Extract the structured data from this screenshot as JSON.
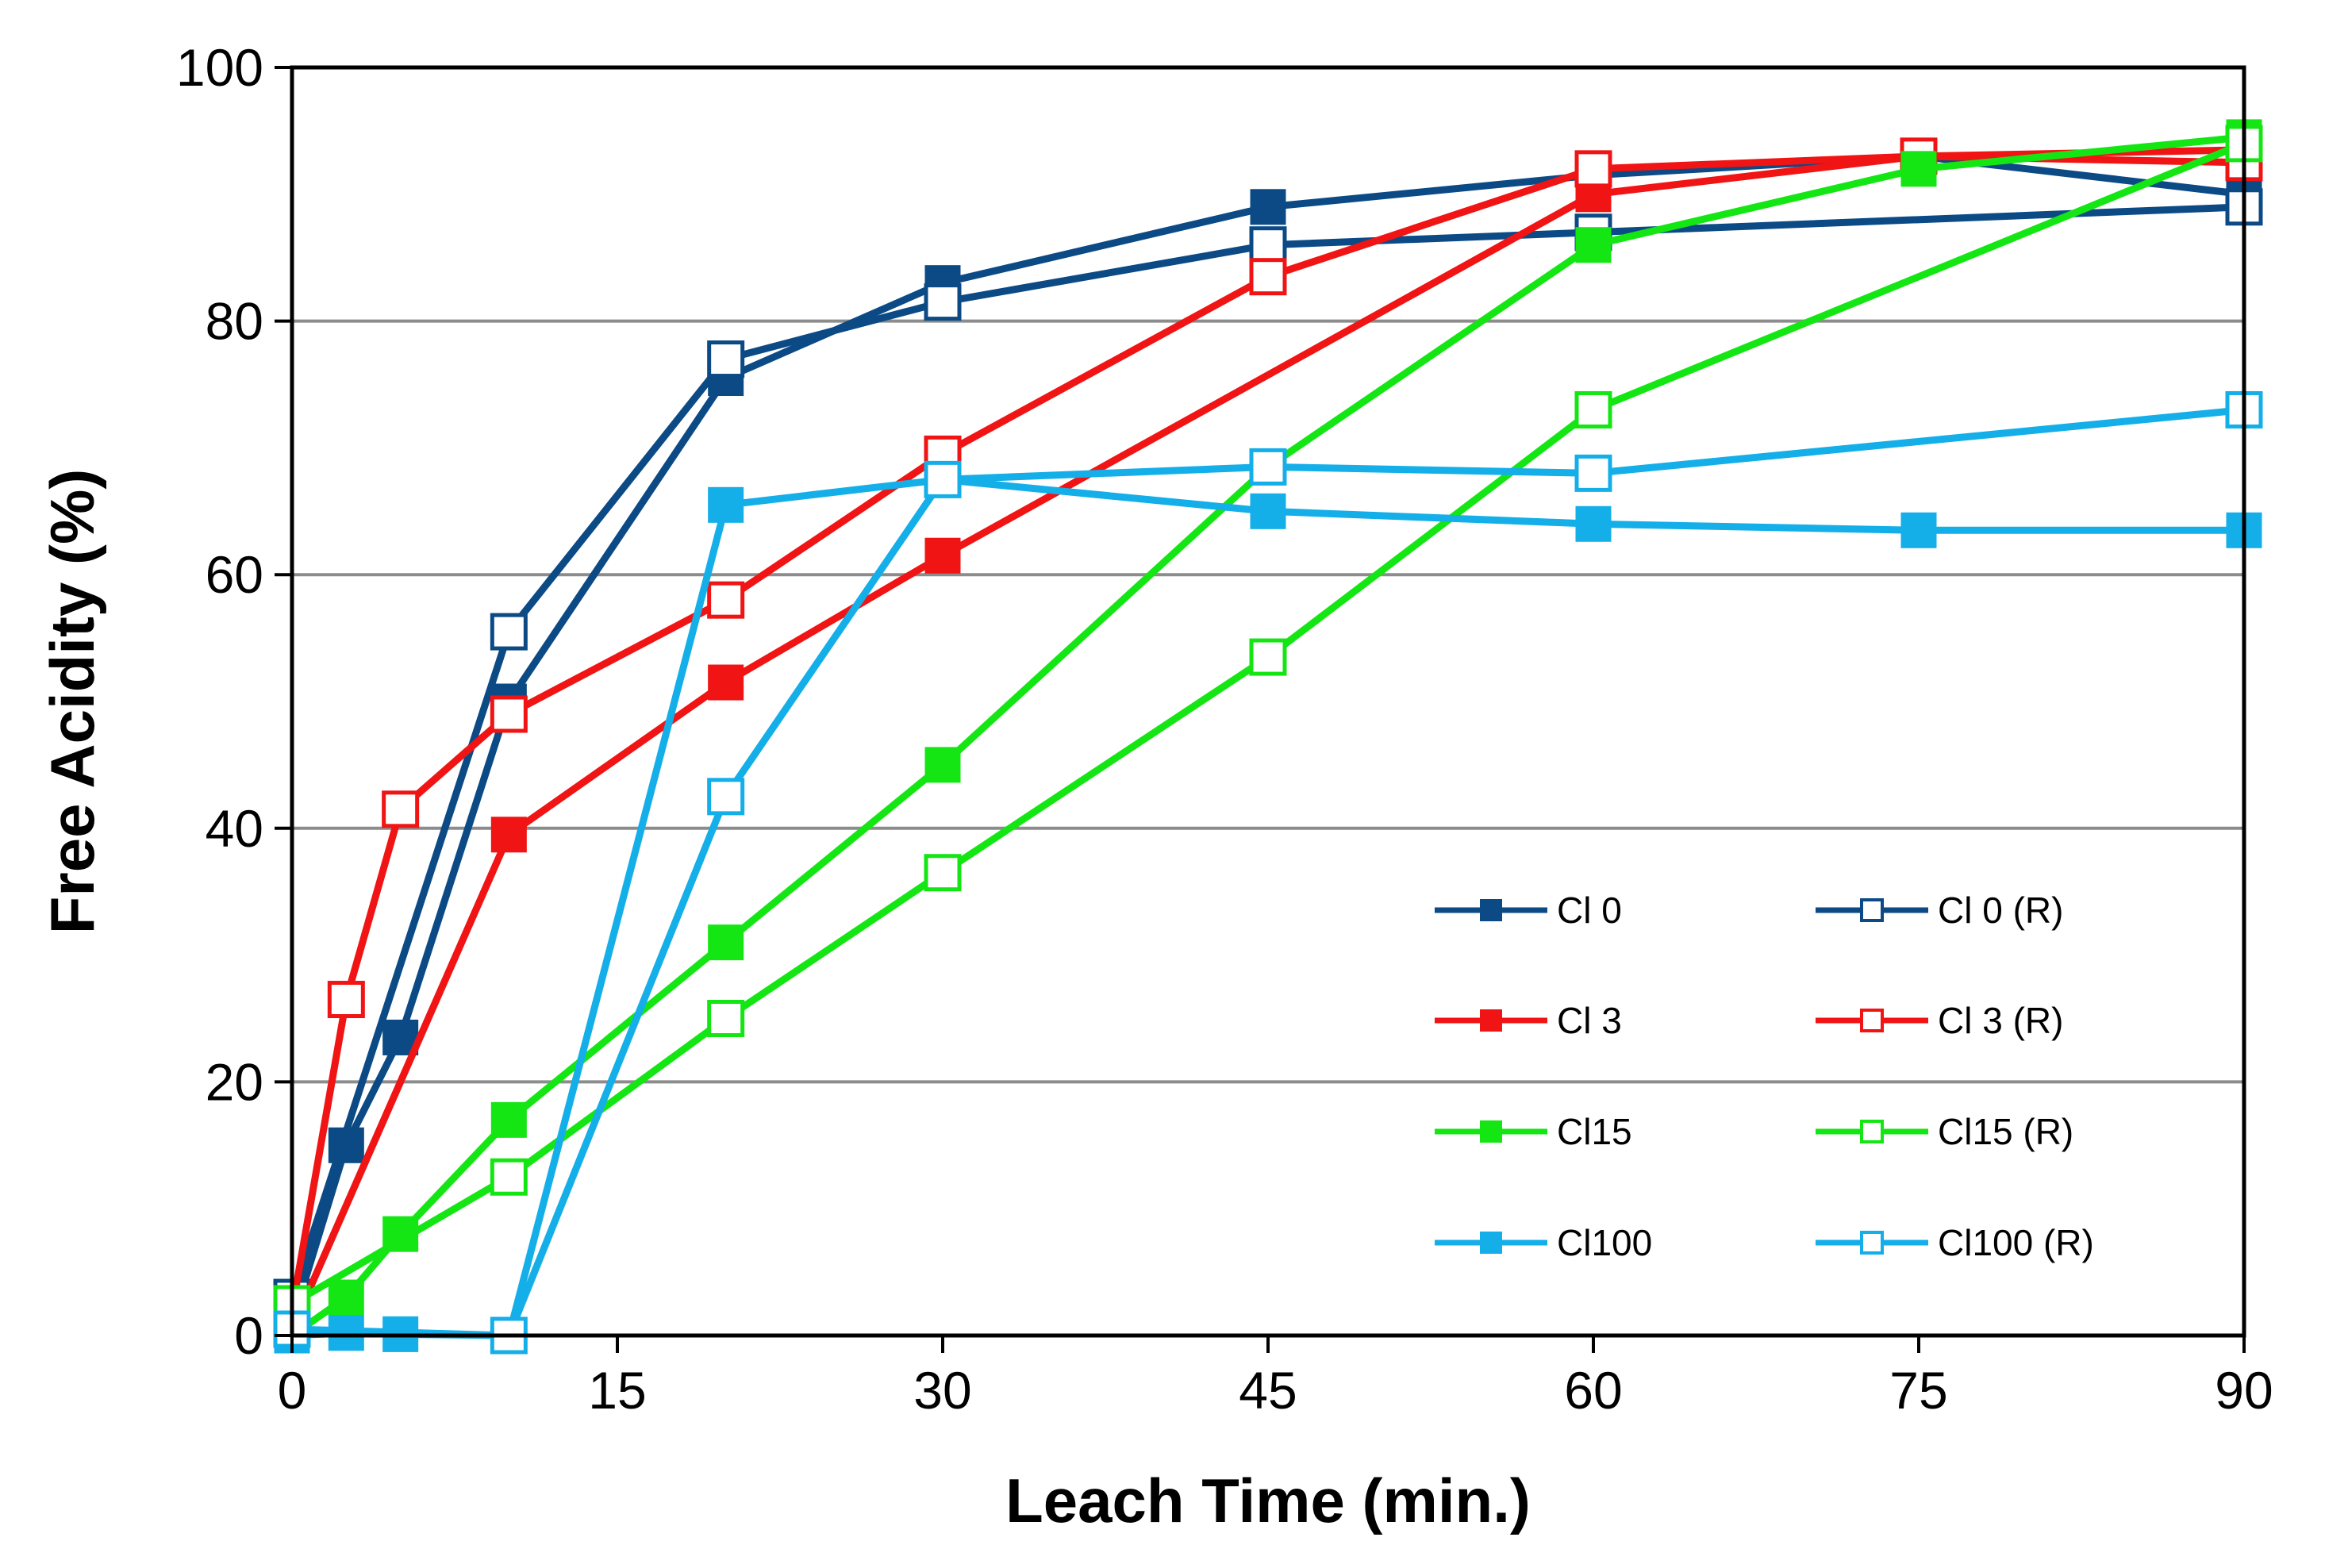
{
  "chart_data": {
    "type": "line",
    "title": "",
    "xlabel": "Leach Time (min.)",
    "ylabel": "Free Acidity (%)",
    "xlim": [
      0,
      90
    ],
    "ylim": [
      0,
      100
    ],
    "xticks": [
      0,
      15,
      30,
      45,
      60,
      75,
      90
    ],
    "yticks": [
      0,
      20,
      40,
      60,
      80,
      100
    ],
    "grid": "horizontal",
    "legend_position": "bottom-right",
    "series": [
      {
        "name": "Cl 0",
        "color": "#0B4A85",
        "marker": "filled-square",
        "x": [
          0,
          2.5,
          5,
          10,
          20,
          30,
          45,
          60,
          75,
          90
        ],
        "y": [
          1,
          15,
          23.5,
          50,
          75.5,
          83,
          89,
          91.5,
          93,
          90
        ]
      },
      {
        "name": "Cl 0 (R)",
        "color": "#0B4A85",
        "marker": "open-square",
        "x": [
          0,
          10,
          20,
          30,
          45,
          60,
          90
        ],
        "y": [
          3,
          55.5,
          77,
          81.5,
          86,
          87,
          89
        ]
      },
      {
        "name": "Cl 3",
        "color": "#F01414",
        "marker": "filled-square",
        "x": [
          0,
          10,
          20,
          30,
          60,
          75,
          90
        ],
        "y": [
          0.5,
          39.5,
          51.5,
          61.5,
          90,
          93,
          93.5
        ]
      },
      {
        "name": "Cl 3 (R)",
        "color": "#F01414",
        "marker": "open-square",
        "x": [
          0,
          2.5,
          5,
          10,
          20,
          30,
          45,
          60,
          75,
          90
        ],
        "y": [
          2,
          26.5,
          41.5,
          49,
          58,
          69.5,
          83.5,
          92,
          93,
          92.5
        ]
      },
      {
        "name": "Cl15",
        "color": "#14E614",
        "marker": "filled-square",
        "x": [
          0,
          2.5,
          5,
          10,
          20,
          30,
          45,
          60,
          75,
          90
        ],
        "y": [
          0,
          3,
          8,
          17,
          31,
          45,
          68.5,
          86,
          92,
          94.5
        ]
      },
      {
        "name": "Cl15 (R)",
        "color": "#14E614",
        "marker": "open-square",
        "x": [
          0,
          10,
          20,
          30,
          45,
          60,
          90
        ],
        "y": [
          2.5,
          12.5,
          25,
          36.5,
          53.5,
          73,
          94
        ]
      },
      {
        "name": "Cl100",
        "color": "#14AEE8",
        "marker": "filled-square",
        "x": [
          0,
          2.5,
          5,
          10,
          20,
          30,
          45,
          60,
          75,
          90
        ],
        "y": [
          0,
          0.2,
          0.1,
          0,
          65.5,
          67.5,
          65,
          64,
          63.5,
          63.5
        ]
      },
      {
        "name": "Cl100 (R)",
        "color": "#14AEE8",
        "marker": "open-square",
        "x": [
          0,
          10,
          20,
          30,
          45,
          60,
          90
        ],
        "y": [
          0.5,
          0,
          42.5,
          67.5,
          68.5,
          68,
          73
        ]
      }
    ]
  }
}
